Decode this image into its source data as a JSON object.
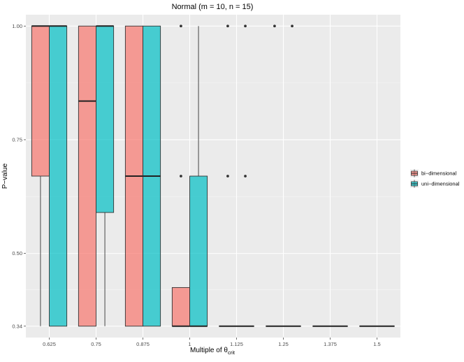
{
  "chart_data": {
    "type": "boxplot",
    "title": "Normal (m = 10, n = 15)",
    "xlabel_main": "Multiple of θ",
    "xlabel_sub": "crit",
    "ylabel": "P−value",
    "categories": [
      "0.625",
      "0.75",
      "0.875",
      "1",
      "1.125",
      "1.25",
      "1.375",
      "1.5"
    ],
    "y_ticks": [
      {
        "value": 0.34,
        "label": "0.34"
      },
      {
        "value": 0.5,
        "label": "0.50"
      },
      {
        "value": 0.75,
        "label": "0.75"
      },
      {
        "value": 1.0,
        "label": "1.00"
      }
    ],
    "ylim": [
      0.315,
      1.025
    ],
    "grid": true,
    "legend_position": "right",
    "series": [
      {
        "name": "bi−dimensional",
        "color": "#F8766D",
        "boxes": [
          {
            "lower": 0.34,
            "q1": 0.67,
            "median": 1.0,
            "q3": 1.0,
            "upper": 1.0,
            "outliers": []
          },
          {
            "lower": 0.34,
            "q1": 0.34,
            "median": 0.835,
            "q3": 1.0,
            "upper": 1.0,
            "outliers": []
          },
          {
            "lower": 0.34,
            "q1": 0.34,
            "median": 0.67,
            "q3": 1.0,
            "upper": 1.0,
            "outliers": []
          },
          {
            "lower": 0.34,
            "q1": 0.34,
            "median": 0.34,
            "q3": 0.425,
            "upper": 0.425,
            "outliers": [
              0.67,
              1.0
            ]
          },
          {
            "lower": 0.34,
            "q1": 0.34,
            "median": 0.34,
            "q3": 0.34,
            "upper": 0.34,
            "outliers": [
              0.67,
              1.0
            ]
          },
          {
            "lower": 0.34,
            "q1": 0.34,
            "median": 0.34,
            "q3": 0.34,
            "upper": 0.34,
            "outliers": [
              1.0
            ]
          },
          {
            "lower": 0.34,
            "q1": 0.34,
            "median": 0.34,
            "q3": 0.34,
            "upper": 0.34,
            "outliers": []
          },
          {
            "lower": 0.34,
            "q1": 0.34,
            "median": 0.34,
            "q3": 0.34,
            "upper": 0.34,
            "outliers": []
          }
        ]
      },
      {
        "name": "uni−dimensional",
        "color": "#00BFC4",
        "boxes": [
          {
            "lower": 0.34,
            "q1": 0.34,
            "median": 1.0,
            "q3": 1.0,
            "upper": 1.0,
            "outliers": []
          },
          {
            "lower": 0.34,
            "q1": 0.59,
            "median": 1.0,
            "q3": 1.0,
            "upper": 1.0,
            "outliers": []
          },
          {
            "lower": 0.34,
            "q1": 0.34,
            "median": 0.67,
            "q3": 1.0,
            "upper": 1.0,
            "outliers": []
          },
          {
            "lower": 0.34,
            "q1": 0.34,
            "median": 0.34,
            "q3": 0.67,
            "upper": 1.0,
            "outliers": []
          },
          {
            "lower": 0.34,
            "q1": 0.34,
            "median": 0.34,
            "q3": 0.34,
            "upper": 0.34,
            "outliers": [
              0.67,
              1.0
            ]
          },
          {
            "lower": 0.34,
            "q1": 0.34,
            "median": 0.34,
            "q3": 0.34,
            "upper": 0.34,
            "outliers": [
              1.0
            ]
          },
          {
            "lower": 0.34,
            "q1": 0.34,
            "median": 0.34,
            "q3": 0.34,
            "upper": 0.34,
            "outliers": []
          },
          {
            "lower": 0.34,
            "q1": 0.34,
            "median": 0.34,
            "q3": 0.34,
            "upper": 0.34,
            "outliers": []
          }
        ]
      }
    ]
  }
}
